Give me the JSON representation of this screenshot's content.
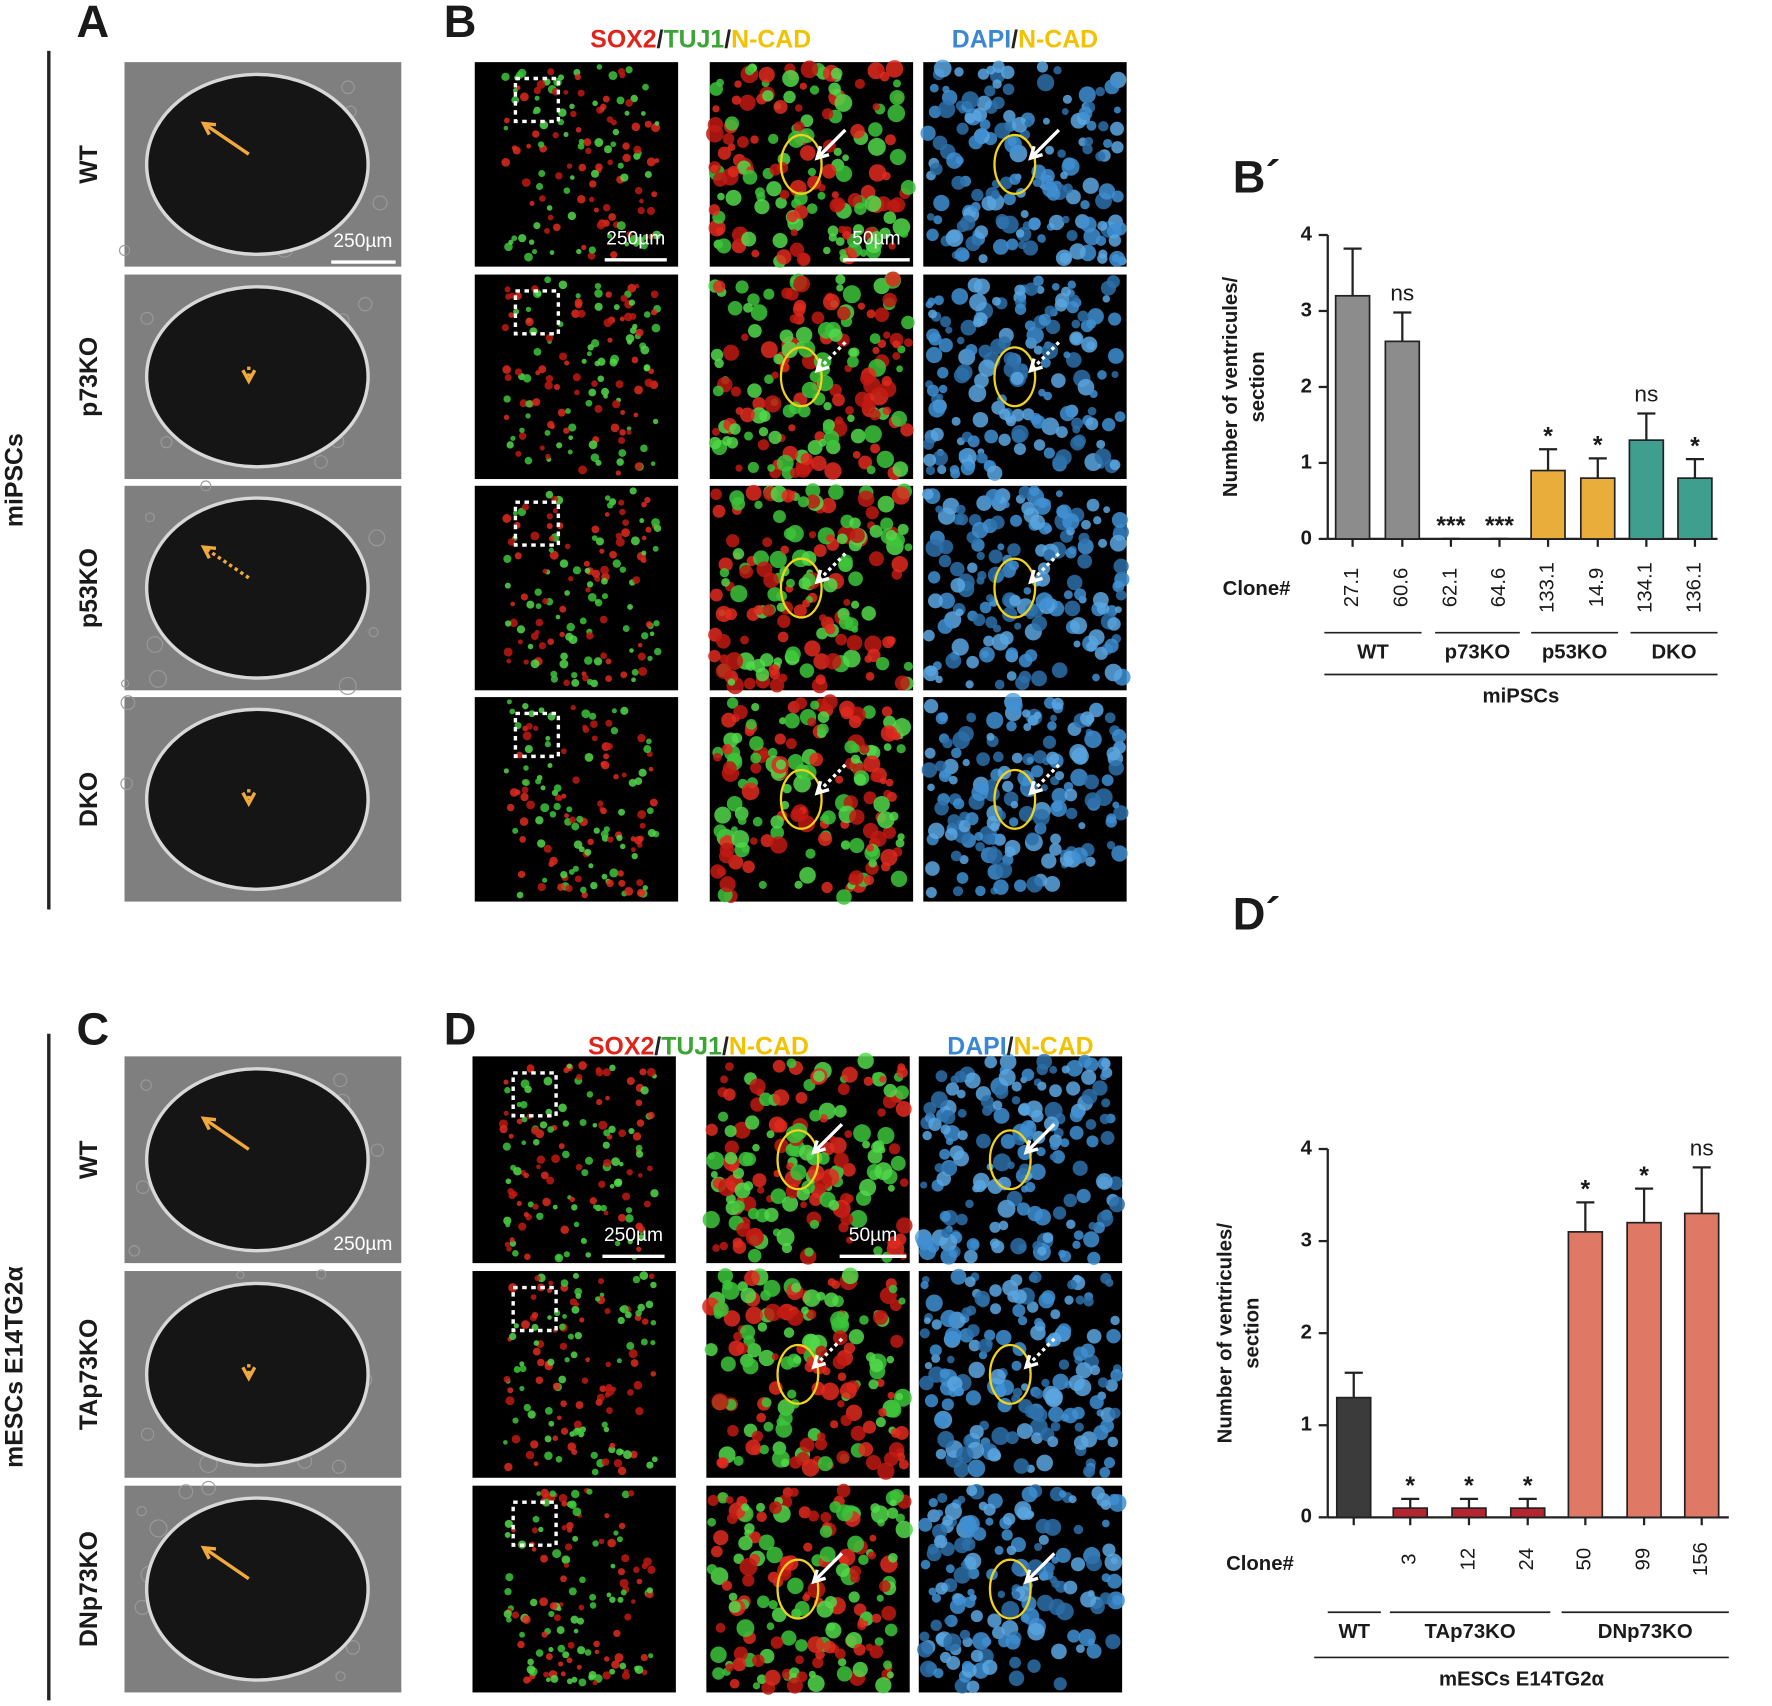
{
  "panel_labels": [
    "A",
    "B",
    "B´",
    "C",
    "D",
    "D´"
  ],
  "top": {
    "side_label": "miPSCs",
    "rows": [
      "WT",
      "p73KO",
      "p53KO",
      "DKO"
    ],
    "scale_bar_brightfield": "250µm",
    "stain_left": [
      "SOX2",
      "/",
      "TUJ1",
      "/",
      "N-CAD"
    ],
    "stain_right": [
      "DAPI",
      "/",
      "N-CAD"
    ],
    "scale_bars_fluorescence": [
      "250µm",
      "50µm"
    ]
  },
  "bottom": {
    "side_label": "mESCs E14TG2α",
    "rows": [
      "WT",
      "TAp73KO",
      "DNp73KO"
    ],
    "scale_bar_brightfield": "250µm",
    "stain_left": [
      "SOX2",
      "/",
      "TUJ1",
      "/",
      "N-CAD"
    ],
    "stain_right": [
      "DAPI",
      "/",
      "N-CAD"
    ],
    "scale_bars_fluorescence": [
      "250µm",
      "50µm"
    ]
  },
  "chart_data": [
    {
      "type": "bar",
      "y_label": [
        "Number of ventricules/",
        "section"
      ],
      "x_label": "Clone#",
      "categories": [
        "27.1",
        "60.6",
        "62.1",
        "64.6",
        "133.1",
        "14.9",
        "134.1",
        "136.1"
      ],
      "values": [
        3.2,
        2.6,
        0,
        0,
        0.9,
        0.8,
        1.3,
        0.8
      ],
      "errors": [
        0.62,
        0.38,
        0,
        0,
        0.28,
        0.26,
        0.35,
        0.25
      ],
      "colors": [
        "#8c8c8c",
        "#8c8c8c",
        "#8c8c8c",
        "#8c8c8c",
        "#e9ad3c",
        "#e9ad3c",
        "#3e9f8f",
        "#3e9f8f"
      ],
      "annotations": [
        null,
        "ns",
        "***",
        "***",
        "*",
        "*",
        "ns",
        "*"
      ],
      "groups": [
        "WT",
        "p73KO",
        "p53KO",
        "DKO"
      ],
      "group_title": "miPSCs",
      "ylim": [
        0,
        4
      ],
      "yticks": [
        0,
        1,
        2,
        3,
        4
      ]
    },
    {
      "type": "bar",
      "y_label": [
        "Number of ventricules/",
        "section"
      ],
      "x_label": "Clone#",
      "categories": [
        null,
        "3",
        "12",
        "24",
        "50",
        "99",
        "156"
      ],
      "values": [
        1.3,
        0.1,
        0.1,
        0.1,
        3.1,
        3.2,
        3.3
      ],
      "errors": [
        0.27,
        0.1,
        0.1,
        0.1,
        0.32,
        0.37,
        0.5
      ],
      "colors": [
        "#3b3b3b",
        "#b52430",
        "#b52430",
        "#b52430",
        "#e07866",
        "#e07866",
        "#e07866"
      ],
      "annotations": [
        null,
        "*",
        "*",
        "*",
        "*",
        "*",
        "ns"
      ],
      "groups": [
        "WT",
        "TAp73KO",
        "DNp73KO"
      ],
      "group_title": "mESCs E14TG2α",
      "ylim": [
        0,
        4
      ],
      "yticks": [
        0,
        1,
        2,
        3,
        4
      ]
    }
  ]
}
